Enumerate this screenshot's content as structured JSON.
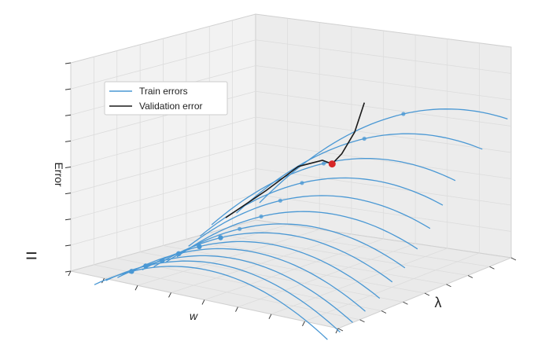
{
  "chart_data": {
    "type": "surface-3d-line",
    "title": "",
    "xlabel": "w",
    "ylabel": "λ",
    "zlabel": "Error",
    "grid": true,
    "legend_position": "upper-left",
    "legend": [
      {
        "label": "Train errors",
        "color": "#4a98d4"
      },
      {
        "label": "Validation error",
        "color": "#1a1a1a"
      }
    ],
    "series": [
      {
        "name": "Train errors",
        "kind": "family-of-curves",
        "curve_count": 13,
        "points": [
          {
            "w": 0.16,
            "lambda": 0.0,
            "error": 0.11
          },
          {
            "w": 0.17,
            "lambda": 0.07,
            "error": 0.14
          },
          {
            "w": 0.19,
            "lambda": 0.14,
            "error": 0.17
          },
          {
            "w": 0.21,
            "lambda": 0.21,
            "error": 0.21
          },
          {
            "w": 0.24,
            "lambda": 0.29,
            "error": 0.25
          },
          {
            "w": 0.28,
            "lambda": 0.36,
            "error": 0.3
          },
          {
            "w": 0.31,
            "lambda": 0.43,
            "error": 0.35
          },
          {
            "w": 0.35,
            "lambda": 0.5,
            "error": 0.42
          },
          {
            "w": 0.38,
            "lambda": 0.57,
            "error": 0.51
          },
          {
            "w": 0.42,
            "lambda": 0.64,
            "error": 0.61
          },
          {
            "w": 0.46,
            "lambda": 0.71,
            "error": 0.72
          },
          {
            "w": 0.52,
            "lambda": 0.86,
            "error": 0.86
          },
          {
            "w": 0.58,
            "lambda": 1.0,
            "error": 1.0
          }
        ]
      },
      {
        "name": "Validation error",
        "kind": "line",
        "points": [
          {
            "lambda": 0.0,
            "error": 0.28
          },
          {
            "lambda": 0.25,
            "error": 0.42
          },
          {
            "lambda": 0.45,
            "error": 0.55
          },
          {
            "lambda": 0.6,
            "error": 0.56
          },
          {
            "lambda": 0.66,
            "error": 0.52
          },
          {
            "lambda": 0.72,
            "error": 0.58
          },
          {
            "lambda": 0.8,
            "error": 0.72
          },
          {
            "lambda": 0.86,
            "error": 0.92
          }
        ],
        "minimum": {
          "lambda": 0.66,
          "error": 0.52,
          "color": "#d62728"
        }
      }
    ],
    "extra_text": "="
  }
}
